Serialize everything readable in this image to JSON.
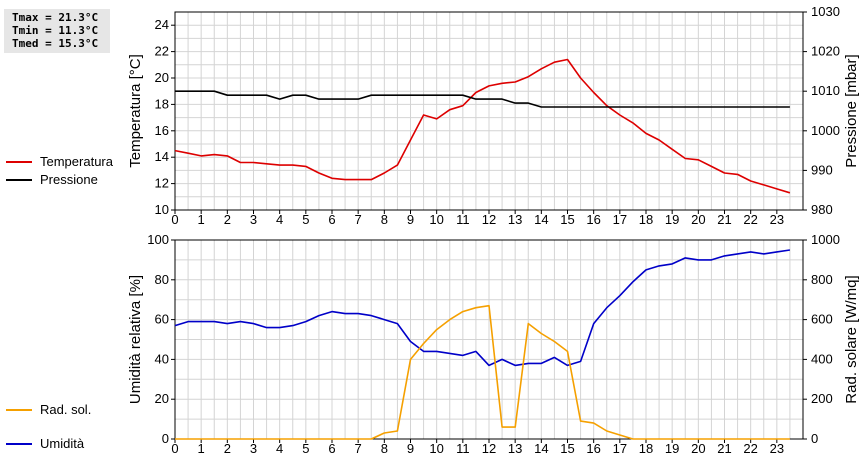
{
  "stats": {
    "tmax": "Tmax = 21.3°C",
    "tmin": "Tmin = 11.3°C",
    "tmed": "Tmed = 15.3°C"
  },
  "colors": {
    "temperature": "#dd0000",
    "pressure": "#000000",
    "humidity": "#0000c8",
    "solar": "#f5a000",
    "grid": "#d4d4d4"
  },
  "chart_data": [
    {
      "type": "line",
      "xlim": [
        0,
        24
      ],
      "xticks": [
        "0",
        "1",
        "2",
        "3",
        "4",
        "5",
        "6",
        "7",
        "8",
        "9",
        "10",
        "11",
        "12",
        "13",
        "14",
        "15",
        "16",
        "17",
        "18",
        "19",
        "20",
        "21",
        "22",
        "23"
      ],
      "ylabel": "Temperatura [°C]",
      "ylim": [
        10,
        25
      ],
      "yticks": [
        "10",
        "12",
        "14",
        "16",
        "18",
        "20",
        "22",
        "24"
      ],
      "y2label": "Pressione [mbar]",
      "y2lim": [
        980,
        1030
      ],
      "y2ticks": [
        "980",
        "990",
        "1000",
        "1010",
        "1020",
        "1030"
      ],
      "grid": true,
      "legend_position": "left",
      "series": [
        {
          "name": "Temperatura",
          "axis": "left",
          "x": [
            0,
            0.5,
            1,
            1.5,
            2,
            2.5,
            3,
            3.5,
            4,
            4.5,
            5,
            5.5,
            6,
            6.5,
            7,
            7.5,
            8,
            8.5,
            9,
            9.5,
            10,
            10.5,
            11,
            11.5,
            12,
            12.5,
            13,
            13.5,
            14,
            14.5,
            15,
            15.5,
            16,
            16.5,
            17,
            17.5,
            18,
            18.5,
            19,
            19.5,
            20,
            20.5,
            21,
            21.5,
            22,
            22.5,
            23,
            23.5
          ],
          "y": [
            14.5,
            14.3,
            14.1,
            14.2,
            14.1,
            13.6,
            13.6,
            13.5,
            13.4,
            13.4,
            13.3,
            12.8,
            12.4,
            12.3,
            12.3,
            12.3,
            12.8,
            13.4,
            15.3,
            17.2,
            16.9,
            17.6,
            17.9,
            18.9,
            19.4,
            19.6,
            19.7,
            20.1,
            20.7,
            21.2,
            21.4,
            20.0,
            18.9,
            17.9,
            17.2,
            16.6,
            15.8,
            15.3,
            14.6,
            13.9,
            13.8,
            13.3,
            12.8,
            12.7,
            12.2,
            11.9,
            11.6,
            11.3
          ]
        },
        {
          "name": "Pressione",
          "axis": "right",
          "x": [
            0,
            0.5,
            1,
            1.5,
            2,
            2.5,
            3,
            3.5,
            4,
            4.5,
            5,
            5.5,
            6,
            6.5,
            7,
            7.5,
            8,
            8.5,
            9,
            9.5,
            10,
            10.5,
            11,
            11.5,
            12,
            12.5,
            13,
            13.5,
            14,
            14.5,
            15,
            15.5,
            16,
            16.5,
            17,
            17.5,
            18,
            18.5,
            19,
            19.5,
            20,
            20.5,
            21,
            21.5,
            22,
            22.5,
            23,
            23.5
          ],
          "y": [
            1010,
            1010,
            1010,
            1010,
            1009,
            1009,
            1009,
            1009,
            1008,
            1009,
            1009,
            1008,
            1008,
            1008,
            1008,
            1009,
            1009,
            1009,
            1009,
            1009,
            1009,
            1009,
            1009,
            1008,
            1008,
            1008,
            1007,
            1007,
            1006,
            1006,
            1006,
            1006,
            1006,
            1006,
            1006,
            1006,
            1006,
            1006,
            1006,
            1006,
            1006,
            1006,
            1006,
            1006,
            1006,
            1006,
            1006,
            1006
          ]
        }
      ]
    },
    {
      "type": "line",
      "xlim": [
        0,
        24
      ],
      "xticks": [
        "0",
        "1",
        "2",
        "3",
        "4",
        "5",
        "6",
        "7",
        "8",
        "9",
        "10",
        "11",
        "12",
        "13",
        "14",
        "15",
        "16",
        "17",
        "18",
        "19",
        "20",
        "21",
        "22",
        "23"
      ],
      "ylabel": "Umidità relativa [%]",
      "ylim": [
        0,
        100
      ],
      "yticks": [
        "0",
        "20",
        "40",
        "60",
        "80",
        "100"
      ],
      "y2label": "Rad. solare [W/mq]",
      "y2lim": [
        0,
        1000
      ],
      "y2ticks": [
        "0",
        "200",
        "400",
        "600",
        "800",
        "1000"
      ],
      "grid": true,
      "legend_position": "left",
      "series": [
        {
          "name": "Umidità",
          "axis": "left",
          "x": [
            0,
            0.5,
            1,
            1.5,
            2,
            2.5,
            3,
            3.5,
            4,
            4.5,
            5,
            5.5,
            6,
            6.5,
            7,
            7.5,
            8,
            8.5,
            9,
            9.5,
            10,
            10.5,
            11,
            11.5,
            12,
            12.5,
            13,
            13.5,
            14,
            14.5,
            15,
            15.5,
            16,
            16.5,
            17,
            17.5,
            18,
            18.5,
            19,
            19.5,
            20,
            20.5,
            21,
            21.5,
            22,
            22.5,
            23,
            23.5
          ],
          "y": [
            57,
            59,
            59,
            59,
            58,
            59,
            58,
            56,
            56,
            57,
            59,
            62,
            64,
            63,
            63,
            62,
            60,
            58,
            49,
            44,
            44,
            43,
            42,
            44,
            37,
            40,
            37,
            38,
            38,
            41,
            37,
            39,
            58,
            66,
            72,
            79,
            85,
            87,
            88,
            91,
            90,
            90,
            92,
            93,
            94,
            93,
            94,
            95
          ]
        },
        {
          "name": "Rad. sol.",
          "axis": "right",
          "x": [
            0,
            0.5,
            1,
            1.5,
            2,
            2.5,
            3,
            3.5,
            4,
            4.5,
            5,
            5.5,
            6,
            6.5,
            7,
            7.5,
            8,
            8.5,
            9,
            9.5,
            10,
            10.5,
            11,
            11.5,
            12,
            12.5,
            13,
            13.5,
            14,
            14.5,
            15,
            15.5,
            16,
            16.5,
            17,
            17.5,
            18,
            18.5,
            19,
            19.5,
            20,
            20.5,
            21,
            21.5,
            22,
            22.5,
            23,
            23.5
          ],
          "y": [
            0,
            0,
            0,
            0,
            0,
            0,
            0,
            0,
            0,
            0,
            0,
            0,
            0,
            0,
            0,
            0,
            30,
            40,
            400,
            480,
            550,
            600,
            640,
            660,
            670,
            60,
            60,
            580,
            530,
            490,
            440,
            90,
            80,
            40,
            20,
            0,
            0,
            0,
            0,
            0,
            0,
            0,
            0,
            0,
            0,
            0,
            0,
            0
          ]
        }
      ]
    }
  ]
}
